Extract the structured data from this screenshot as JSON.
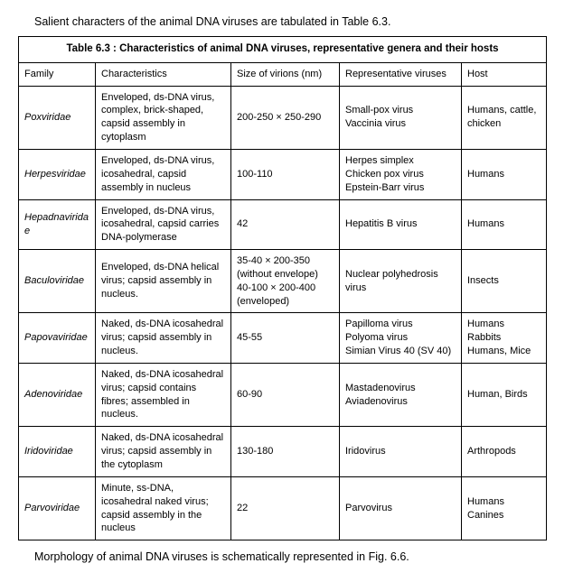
{
  "intro_text": "Salient characters of the animal DNA viruses are tabulated in Table 6.3.",
  "outro_text": "Morphology of animal DNA viruses is schematically represented in Fig. 6.6.",
  "table_title": "Table 6.3 : Characteristics of animal DNA viruses, representative genera and their hosts",
  "headers": {
    "family": "Family",
    "characteristics": "Characteristics",
    "size": "Size of virions (nm)",
    "representative": "Representative viruses",
    "host": "Host"
  },
  "rows": [
    {
      "family": "Poxviridae",
      "characteristics": "Enveloped, ds-DNA virus, complex, brick-shaped, capsid assembly in cytoplasm",
      "size": "200-250 × 250-290",
      "representative": "Small-pox virus\nVaccinia virus",
      "host": "Humans, cattle, chicken"
    },
    {
      "family": "Herpesviridae",
      "characteristics": "Enveloped, ds-DNA virus, icosahedral, capsid assembly in nucleus",
      "size": "100-110",
      "representative": "Herpes simplex\nChicken pox virus\nEpstein-Barr virus",
      "host": "Humans"
    },
    {
      "family": "Hepadnaviridae",
      "characteristics": "Enveloped, ds-DNA virus, icosahedral, capsid carries DNA-polymerase",
      "size": "42",
      "representative": "Hepatitis B virus",
      "host": "Humans"
    },
    {
      "family": "Baculoviridae",
      "characteristics": "Enveloped, ds-DNA helical virus; capsid assembly in nucleus.",
      "size": "35-40 × 200-350 (without envelope) 40-100 × 200-400 (enveloped)",
      "representative": "Nuclear polyhedrosis virus",
      "host": "Insects"
    },
    {
      "family": "Papovaviridae",
      "characteristics": "Naked, ds-DNA icosahedral virus; capsid assembly in nucleus.",
      "size": "45-55",
      "representative": "Papilloma virus\nPolyoma virus\nSimian Virus 40 (SV 40)",
      "host": "Humans\nRabbits\nHumans, Mice"
    },
    {
      "family": "Adenoviridae",
      "characteristics": "Naked, ds-DNA icosahedral virus; capsid contains fibres; assembled in nucleus.",
      "size": "60-90",
      "representative": "Mastadenovirus\nAviadenovirus",
      "host": "Human, Birds"
    },
    {
      "family": "Iridoviridae",
      "characteristics": "Naked, ds-DNA icosahedral virus; capsid assembly in the cytoplasm",
      "size": "130-180",
      "representative": "Iridovirus",
      "host": "Arthropods"
    },
    {
      "family": "Parvoviridae",
      "characteristics": "Minute, ss-DNA, icosahedral naked virus; capsid assembly in the nucleus",
      "size": "22",
      "representative": "Parvovirus",
      "host": "Humans\nCanines"
    }
  ]
}
